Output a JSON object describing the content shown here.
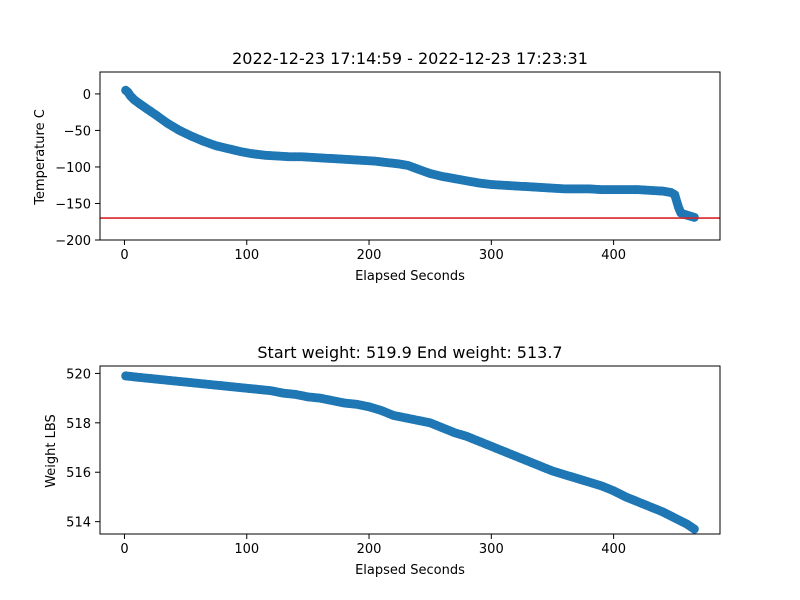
{
  "chart_data": [
    {
      "type": "scatter",
      "title": "2022-12-23 17:14:59 - 2022-12-23 17:23:31",
      "xlabel": "Elapsed Seconds",
      "ylabel": "Temperature C",
      "xlim": [
        -20,
        487
      ],
      "ylim": [
        -200,
        30
      ],
      "xticks": [
        0,
        100,
        200,
        300,
        400
      ],
      "yticks": [
        0,
        -50,
        -100,
        -150,
        -200
      ],
      "grid": false,
      "marker_color": "#1f77b4",
      "reference_line": {
        "y": -170,
        "color": "#d62728"
      },
      "series": [
        {
          "x": [
            1,
            3,
            5,
            8,
            12,
            18,
            25,
            35,
            45,
            55,
            65,
            75,
            85,
            95,
            105,
            115,
            125,
            135,
            145,
            155,
            165,
            175,
            185,
            195,
            205,
            215,
            225,
            232,
            240,
            250,
            260,
            270,
            280,
            290,
            300,
            310,
            320,
            330,
            340,
            350,
            360,
            370,
            380,
            390,
            400,
            410,
            420,
            430,
            440,
            447,
            450,
            453,
            455,
            458,
            462,
            466
          ],
          "y": [
            5,
            2,
            -3,
            -8,
            -13,
            -20,
            -28,
            -40,
            -50,
            -58,
            -65,
            -71,
            -75,
            -79,
            -82,
            -84,
            -85,
            -86,
            -86,
            -87,
            -88,
            -89,
            -90,
            -91,
            -92,
            -94,
            -96,
            -98,
            -103,
            -109,
            -113,
            -116,
            -119,
            -122,
            -124,
            -125,
            -126,
            -127,
            -128,
            -129,
            -130,
            -130,
            -130,
            -131,
            -131,
            -131,
            -131,
            -132,
            -133,
            -135,
            -138,
            -155,
            -163,
            -165,
            -167,
            -169
          ]
        }
      ]
    },
    {
      "type": "scatter",
      "title": "Start weight: 519.9 End weight: 513.7",
      "xlabel": "Elapsed Seconds",
      "ylabel": "Weight LBS",
      "xlim": [
        -20,
        487
      ],
      "ylim": [
        513.5,
        520.3
      ],
      "xticks": [
        0,
        100,
        200,
        300,
        400
      ],
      "yticks": [
        514,
        516,
        518,
        520
      ],
      "grid": false,
      "marker_color": "#1f77b4",
      "series": [
        {
          "x": [
            1,
            10,
            20,
            30,
            40,
            50,
            60,
            70,
            80,
            90,
            100,
            110,
            120,
            130,
            140,
            150,
            160,
            170,
            180,
            190,
            200,
            210,
            220,
            230,
            240,
            250,
            260,
            270,
            280,
            290,
            300,
            310,
            320,
            330,
            340,
            350,
            360,
            370,
            380,
            390,
            400,
            410,
            420,
            430,
            440,
            450,
            460,
            466
          ],
          "y": [
            519.9,
            519.85,
            519.8,
            519.75,
            519.7,
            519.65,
            519.6,
            519.55,
            519.5,
            519.45,
            519.4,
            519.35,
            519.3,
            519.2,
            519.15,
            519.05,
            519.0,
            518.9,
            518.8,
            518.75,
            518.65,
            518.5,
            518.3,
            518.2,
            518.1,
            518.0,
            517.8,
            517.6,
            517.45,
            517.25,
            517.05,
            516.85,
            516.65,
            516.45,
            516.25,
            516.05,
            515.9,
            515.75,
            515.6,
            515.45,
            515.25,
            515.0,
            514.8,
            514.6,
            514.4,
            514.15,
            513.9,
            513.7
          ]
        }
      ]
    }
  ]
}
